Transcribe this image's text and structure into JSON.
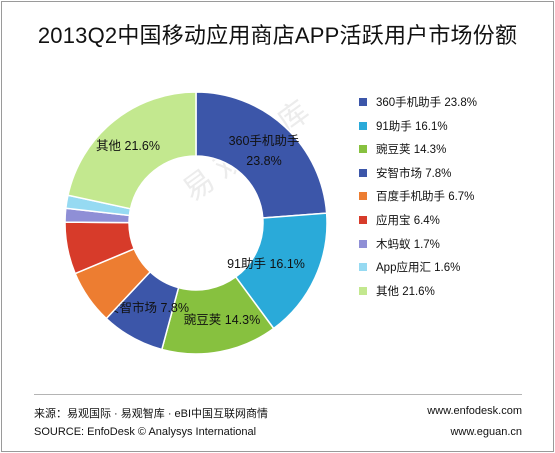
{
  "title": "2013Q2中国移动应用商店APP活跃用户市场份额",
  "chart_data": {
    "type": "pie",
    "style": "donut",
    "slices": [
      {
        "label": "360手机助手",
        "value": 23.8,
        "value_label": "23.8%",
        "color": "#3c56a9"
      },
      {
        "label": "91助手",
        "value": 16.1,
        "value_label": "16.1%",
        "color": "#2aaad9"
      },
      {
        "label": "豌豆荚",
        "value": 14.3,
        "value_label": "14.3%",
        "color": "#87c13f"
      },
      {
        "label": "安智市场",
        "value": 7.8,
        "value_label": "7.8%",
        "color": "#3c56a9"
      },
      {
        "label": "百度手机助手",
        "value": 6.7,
        "value_label": "6.7%",
        "color": "#ed7d31"
      },
      {
        "label": "应用宝",
        "value": 6.4,
        "value_label": "6.4%",
        "color": "#d73b2a"
      },
      {
        "label": "木蚂蚁",
        "value": 1.7,
        "value_label": "1.7%",
        "color": "#8f8fd6"
      },
      {
        "label": "App应用汇",
        "value": 1.6,
        "value_label": "1.6%",
        "color": "#96daf2"
      },
      {
        "label": "其他",
        "value": 21.6,
        "value_label": "21.6%",
        "color": "#c3e88f"
      }
    ],
    "legend_position": "right"
  },
  "watermark": "易观智库",
  "footer": {
    "source_cn": "来源：易观国际 · 易观智库 · eBI中国互联网商情",
    "source_en": "SOURCE: EnfoDesk © Analysys International",
    "site1": "www.enfodesk.com",
    "site2": "www.eguan.cn"
  }
}
